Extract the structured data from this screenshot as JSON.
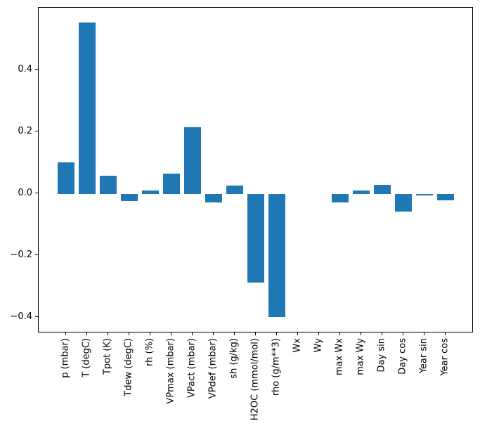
{
  "figure": {
    "background": "#ffffff",
    "spine_color": "#000000",
    "tick_color": "#000000"
  },
  "chart_data": {
    "type": "bar",
    "title": "",
    "xlabel": "",
    "ylabel": "",
    "categories": [
      "p (mbar)",
      "T (degC)",
      "Tpot (K)",
      "Tdew (degC)",
      "rh (%)",
      "VPmax (mbar)",
      "VPact (mbar)",
      "VPdef (mbar)",
      "sh (g/kg)",
      "H2OC (mmol/mol)",
      "rho (g/m**3)",
      "Wx",
      "Wy",
      "max Wx",
      "max Wy",
      "Day sin",
      "Day cos",
      "Year sin",
      "Year cos"
    ],
    "values": [
      0.1,
      0.553,
      0.058,
      -0.024,
      0.01,
      0.065,
      0.215,
      -0.029,
      0.027,
      -0.287,
      -0.397,
      0.0,
      0.0,
      -0.028,
      0.01,
      0.028,
      -0.058,
      -0.005,
      -0.021
    ],
    "bar_color": "#1f77b4",
    "ylim": [
      -0.45,
      0.6
    ],
    "yticks": {
      "values": [
        0.4,
        0.2,
        0.0,
        -0.2,
        -0.4
      ],
      "labels": [
        "0.4",
        "0.2",
        "0.0",
        "−0.2",
        "−0.4"
      ]
    },
    "x_tick_rotation_deg": 90,
    "grid": false,
    "legend": "none"
  }
}
